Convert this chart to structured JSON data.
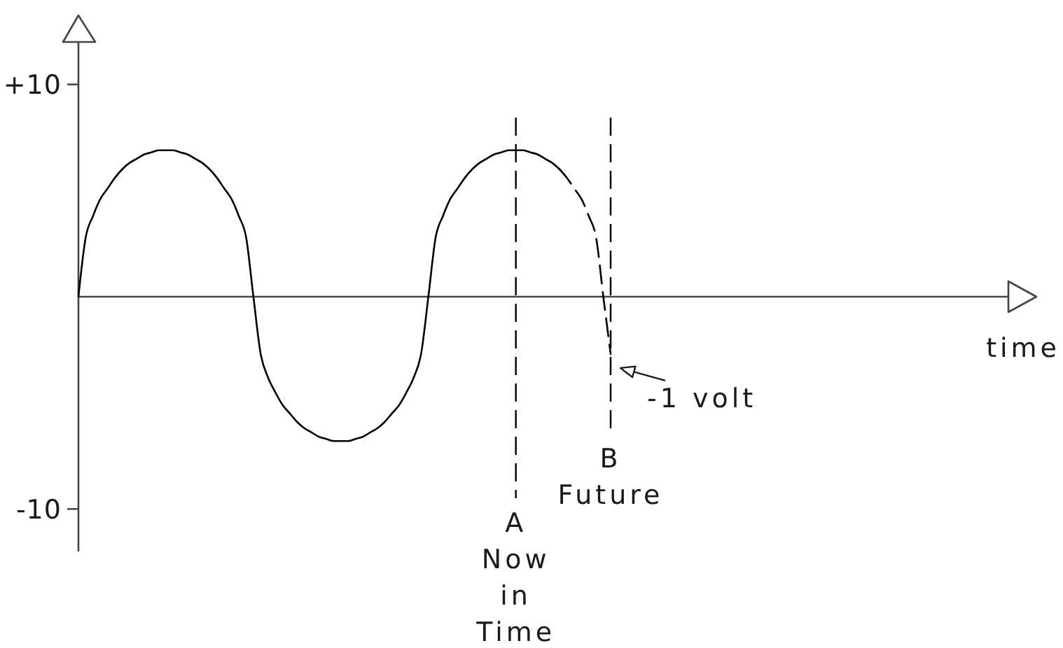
{
  "chart_data": {
    "type": "line",
    "categories": [
      null,
      null,
      null,
      null,
      null,
      null,
      null,
      null,
      null,
      null,
      null,
      null,
      null,
      null,
      null,
      null,
      null,
      null,
      null,
      null,
      null,
      null,
      null,
      null,
      null,
      null,
      null,
      null,
      null,
      null,
      null,
      null,
      null,
      null,
      null,
      null,
      null,
      null,
      null,
      null,
      null,
      null,
      null,
      null,
      null,
      null,
      null,
      null,
      null,
      null,
      null,
      null,
      null,
      null,
      null,
      null,
      null,
      null,
      null,
      null,
      "A Now in Time",
      null,
      null,
      null,
      null,
      null,
      null,
      null,
      null,
      null,
      null,
      null,
      null,
      "B Future"
    ],
    "series": [
      {
        "color": "#000000",
        "values": [
          0,
          2.8,
          3.8,
          4.6,
          5.1,
          5.6,
          6.0,
          6.3,
          6.5,
          6.7,
          6.8,
          6.9,
          6.9,
          6.9,
          6.8,
          6.7,
          6.5,
          6.3,
          6.0,
          5.6,
          5.1,
          4.6,
          3.8,
          2.8,
          0,
          -2.7,
          -3.8,
          -4.5,
          -5.1,
          -5.5,
          -5.9,
          -6.2,
          -6.4,
          -6.6,
          -6.7,
          -6.8,
          -6.8,
          -6.8,
          -6.7,
          -6.6,
          -6.4,
          -6.2,
          -5.9,
          -5.5,
          -5.1,
          -4.5,
          -3.8,
          -2.7,
          0,
          2.8,
          3.8,
          4.6,
          5.1,
          5.6,
          6.0,
          6.3,
          6.5,
          6.7,
          6.8,
          6.9,
          6.9,
          6.9,
          6.8,
          6.7,
          6.5,
          6.3,
          6.0,
          null,
          null,
          null,
          null,
          null,
          null,
          null
        ]
      },
      {
        "color": "#000000",
        "line_style": "dashed",
        "values": [
          null,
          null,
          null,
          null,
          null,
          null,
          null,
          null,
          null,
          null,
          null,
          null,
          null,
          null,
          null,
          null,
          null,
          null,
          null,
          null,
          null,
          null,
          null,
          null,
          null,
          null,
          null,
          null,
          null,
          null,
          null,
          null,
          null,
          null,
          null,
          null,
          null,
          null,
          null,
          null,
          null,
          null,
          null,
          null,
          null,
          null,
          null,
          null,
          null,
          null,
          null,
          null,
          null,
          null,
          null,
          null,
          null,
          null,
          null,
          null,
          null,
          null,
          null,
          null,
          null,
          null,
          6.0,
          5.6,
          5.1,
          4.6,
          3.8,
          2.8,
          0,
          -2.7
        ]
      }
    ],
    "line_style": "solid",
    "ylim": [
      -12,
      12
    ],
    "yticks": [
      {
        "value": 10,
        "label": "+10"
      },
      -10
    ],
    "ref_lines": [
      {
        "axis": "x",
        "value": "A Now in Time",
        "color": "#000000",
        "line_style": "dashed"
      },
      {
        "axis": "x",
        "value": "B Future",
        "color": "#000000",
        "line_style": "dashed"
      }
    ],
    "annotations": [
      "time",
      "-1 volt"
    ]
  }
}
